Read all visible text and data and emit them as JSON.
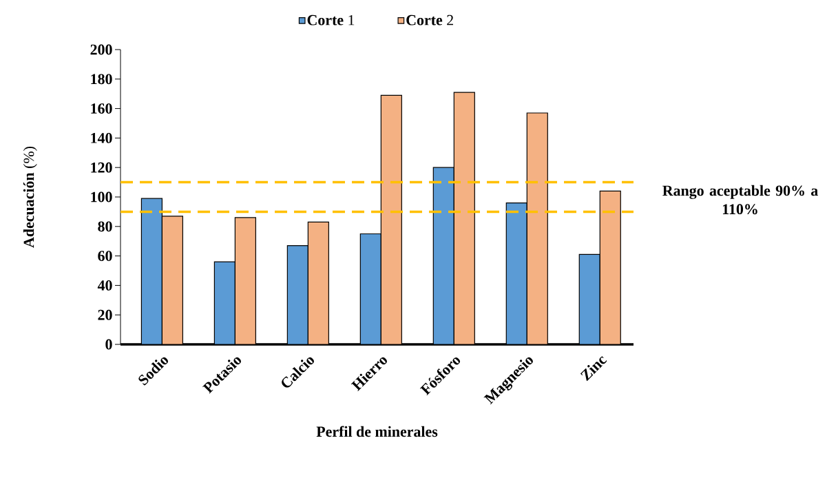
{
  "chart_data": {
    "type": "bar",
    "xlabel": "Perfil de minerales",
    "ylabel": "**Adecuación** (%)",
    "categories": [
      "Sodio",
      "Potasio",
      "Calcio",
      "Hierro",
      "Fósforo",
      "Magnesio",
      "Zinc"
    ],
    "series": [
      {
        "name": "**Corte** 1",
        "color": "#5b9bd5",
        "values": [
          99,
          56,
          67,
          75,
          120,
          96,
          61
        ]
      },
      {
        "name": "**Corte** 2",
        "color": "#f4b183",
        "values": [
          87,
          86,
          83,
          169,
          171,
          157,
          104
        ]
      }
    ],
    "ylim": [
      0,
      200
    ],
    "yticks": [
      0,
      20,
      40,
      60,
      80,
      100,
      120,
      140,
      160,
      180,
      200
    ],
    "ref_lines": [
      {
        "axis": "y",
        "value": 110,
        "color": "#ffc000",
        "line_style": "dashed"
      },
      {
        "axis": "y",
        "value": 90,
        "color": "#ffc000",
        "line_style": "dashed"
      }
    ],
    "annotations": [
      "Rango aceptable 90% a 110%"
    ],
    "legend": "top",
    "grid": false
  }
}
